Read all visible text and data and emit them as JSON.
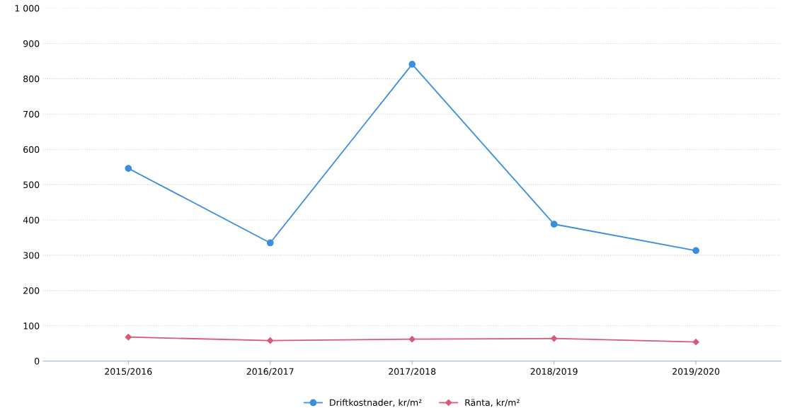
{
  "chart_data": {
    "type": "line",
    "categories": [
      "2015/2016",
      "2016/2017",
      "2017/2018",
      "2018/2019",
      "2019/2020"
    ],
    "series": [
      {
        "name": "Driftkostnader, kr/m²",
        "color": "#3a8ee0",
        "values": [
          546,
          335,
          841,
          388,
          313
        ],
        "marker": "circle"
      },
      {
        "name": "Ränta, kr/m²",
        "color": "#d9587a",
        "values": [
          68,
          58,
          62,
          64,
          54
        ],
        "marker": "diamond"
      }
    ],
    "ylim": [
      0,
      1000
    ],
    "yticks": [
      0,
      100,
      200,
      300,
      400,
      500,
      600,
      700,
      800,
      900,
      {
        "value": 1000,
        "label": "1 000"
      }
    ],
    "grid": "y",
    "legend": "bottom",
    "line_style": "solid"
  }
}
